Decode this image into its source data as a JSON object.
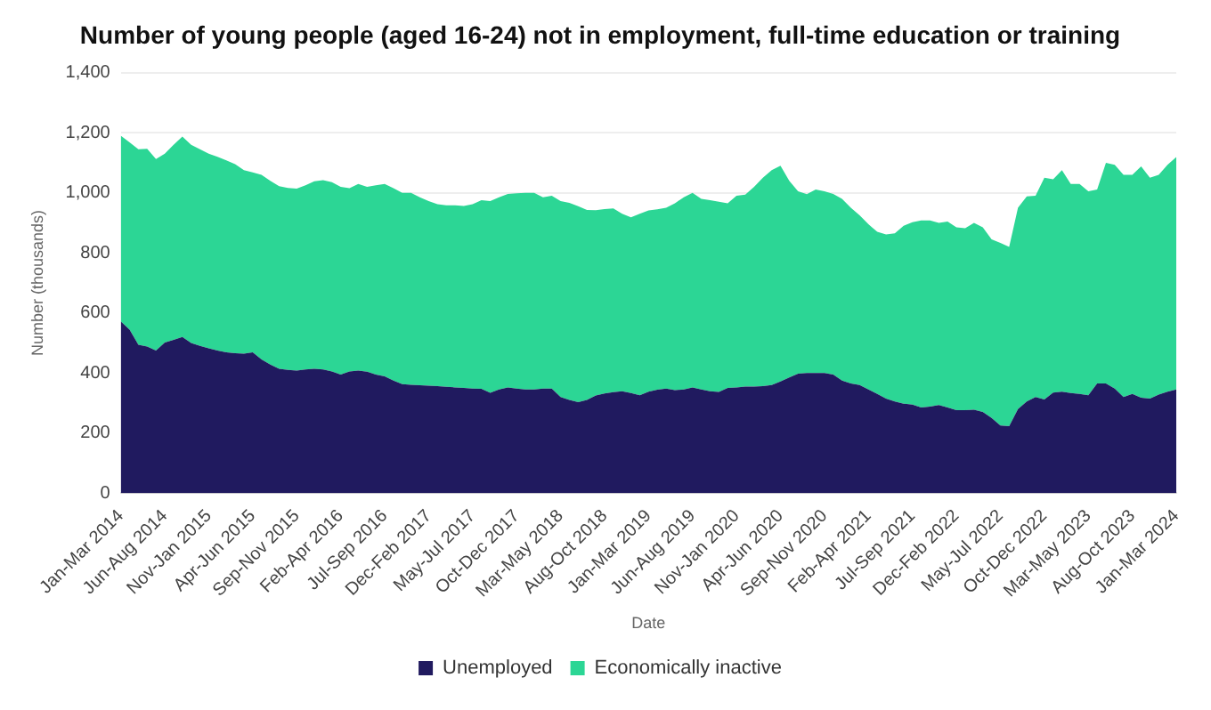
{
  "chart_data": {
    "type": "area",
    "title": "Number of young people (aged 16-24) not in employment, full-time education or training",
    "xlabel": "Date",
    "ylabel": "Number (thousands)",
    "categories": [
      "Jan-Mar 2014",
      null,
      null,
      null,
      null,
      "Jun-Aug 2014",
      null,
      null,
      null,
      null,
      "Nov-Jan 2015",
      null,
      null,
      null,
      null,
      "Apr-Jun 2015",
      null,
      null,
      null,
      null,
      "Sep-Nov 2015",
      null,
      null,
      null,
      null,
      "Feb-Apr 2016",
      null,
      null,
      null,
      null,
      "Jul-Sep 2016",
      null,
      null,
      null,
      null,
      "Dec-Feb 2017",
      null,
      null,
      null,
      null,
      "May-Jul 2017",
      null,
      null,
      null,
      null,
      "Oct-Dec 2017",
      null,
      null,
      null,
      null,
      "Mar-May 2018",
      null,
      null,
      null,
      null,
      "Aug-Oct 2018",
      null,
      null,
      null,
      null,
      "Jan-Mar 2019",
      null,
      null,
      null,
      null,
      "Jun-Aug 2019",
      null,
      null,
      null,
      null,
      "Nov-Jan 2020",
      null,
      null,
      null,
      null,
      "Apr-Jun 2020",
      null,
      null,
      null,
      null,
      "Sep-Nov 2020",
      null,
      null,
      null,
      null,
      "Feb-Apr 2021",
      null,
      null,
      null,
      null,
      "Jul-Sep 2021",
      null,
      null,
      null,
      null,
      "Dec-Feb 2022",
      null,
      null,
      null,
      null,
      "May-Jul 2022",
      null,
      null,
      null,
      null,
      "Oct-Dec 2022",
      null,
      null,
      null,
      null,
      "Mar-May 2023",
      null,
      null,
      null,
      null,
      "Aug-Oct 2023",
      null,
      null,
      null,
      null,
      "Jan-Mar 2024"
    ],
    "series": [
      {
        "name": "Unemployed",
        "color": "#201a5f",
        "values": [
          572,
          544,
          494,
          488,
          475,
          501,
          510,
          520,
          500,
          490,
          482,
          475,
          469,
          466,
          464,
          469,
          445,
          428,
          414,
          410,
          408,
          412,
          414,
          412,
          405,
          395,
          405,
          408,
          404,
          395,
          389,
          375,
          363,
          361,
          359,
          358,
          356,
          354,
          352,
          350,
          348,
          347,
          334,
          345,
          352,
          348,
          345,
          345,
          348,
          348,
          320,
          310,
          303,
          310,
          325,
          332,
          336,
          339,
          333,
          326,
          338,
          344,
          348,
          343,
          345,
          352,
          345,
          339,
          337,
          350,
          352,
          355,
          355,
          356,
          360,
          372,
          385,
          398,
          400,
          400,
          400,
          395,
          375,
          365,
          360,
          345,
          330,
          315,
          305,
          298,
          295,
          285,
          288,
          293,
          285,
          276,
          276,
          278,
          270,
          250,
          225,
          223,
          280,
          305,
          320,
          312,
          335,
          338,
          333,
          330,
          326,
          365,
          365,
          348,
          320,
          330,
          318,
          315,
          328,
          338,
          345
        ]
      },
      {
        "name": "Economically inactive",
        "color": "#2cd695",
        "values": [
          618,
          624,
          651,
          658,
          637,
          629,
          650,
          667,
          660,
          655,
          648,
          645,
          639,
          629,
          611,
          599,
          615,
          612,
          608,
          606,
          606,
          613,
          624,
          630,
          630,
          625,
          610,
          621,
          616,
          630,
          640,
          640,
          637,
          639,
          626,
          614,
          606,
          604,
          606,
          606,
          614,
          628,
          638,
          640,
          644,
          650,
          655,
          655,
          637,
          642,
          652,
          656,
          652,
          633,
          617,
          614,
          612,
          591,
          585,
          604,
          603,
          601,
          602,
          622,
          640,
          648,
          635,
          636,
          633,
          615,
          638,
          639,
          665,
          694,
          715,
          718,
          655,
          607,
          595,
          611,
          605,
          601,
          605,
          585,
          565,
          550,
          540,
          546,
          560,
          592,
          607,
          623,
          620,
          607,
          619,
          609,
          606,
          622,
          615,
          595,
          608,
          597,
          670,
          683,
          670,
          738,
          710,
          737,
          696,
          699,
          679,
          646,
          735,
          745,
          740,
          730,
          770,
          735,
          732,
          755,
          774
        ]
      }
    ],
    "stacked": true,
    "ylim": [
      0,
      1400
    ],
    "yticks": [
      0,
      200,
      400,
      600,
      800,
      {
        "value": 1000,
        "label": "1,000"
      },
      {
        "value": 1200,
        "label": "1,200"
      },
      {
        "value": 1400,
        "label": "1,400"
      }
    ],
    "grid": "y",
    "legend": "bottom"
  }
}
